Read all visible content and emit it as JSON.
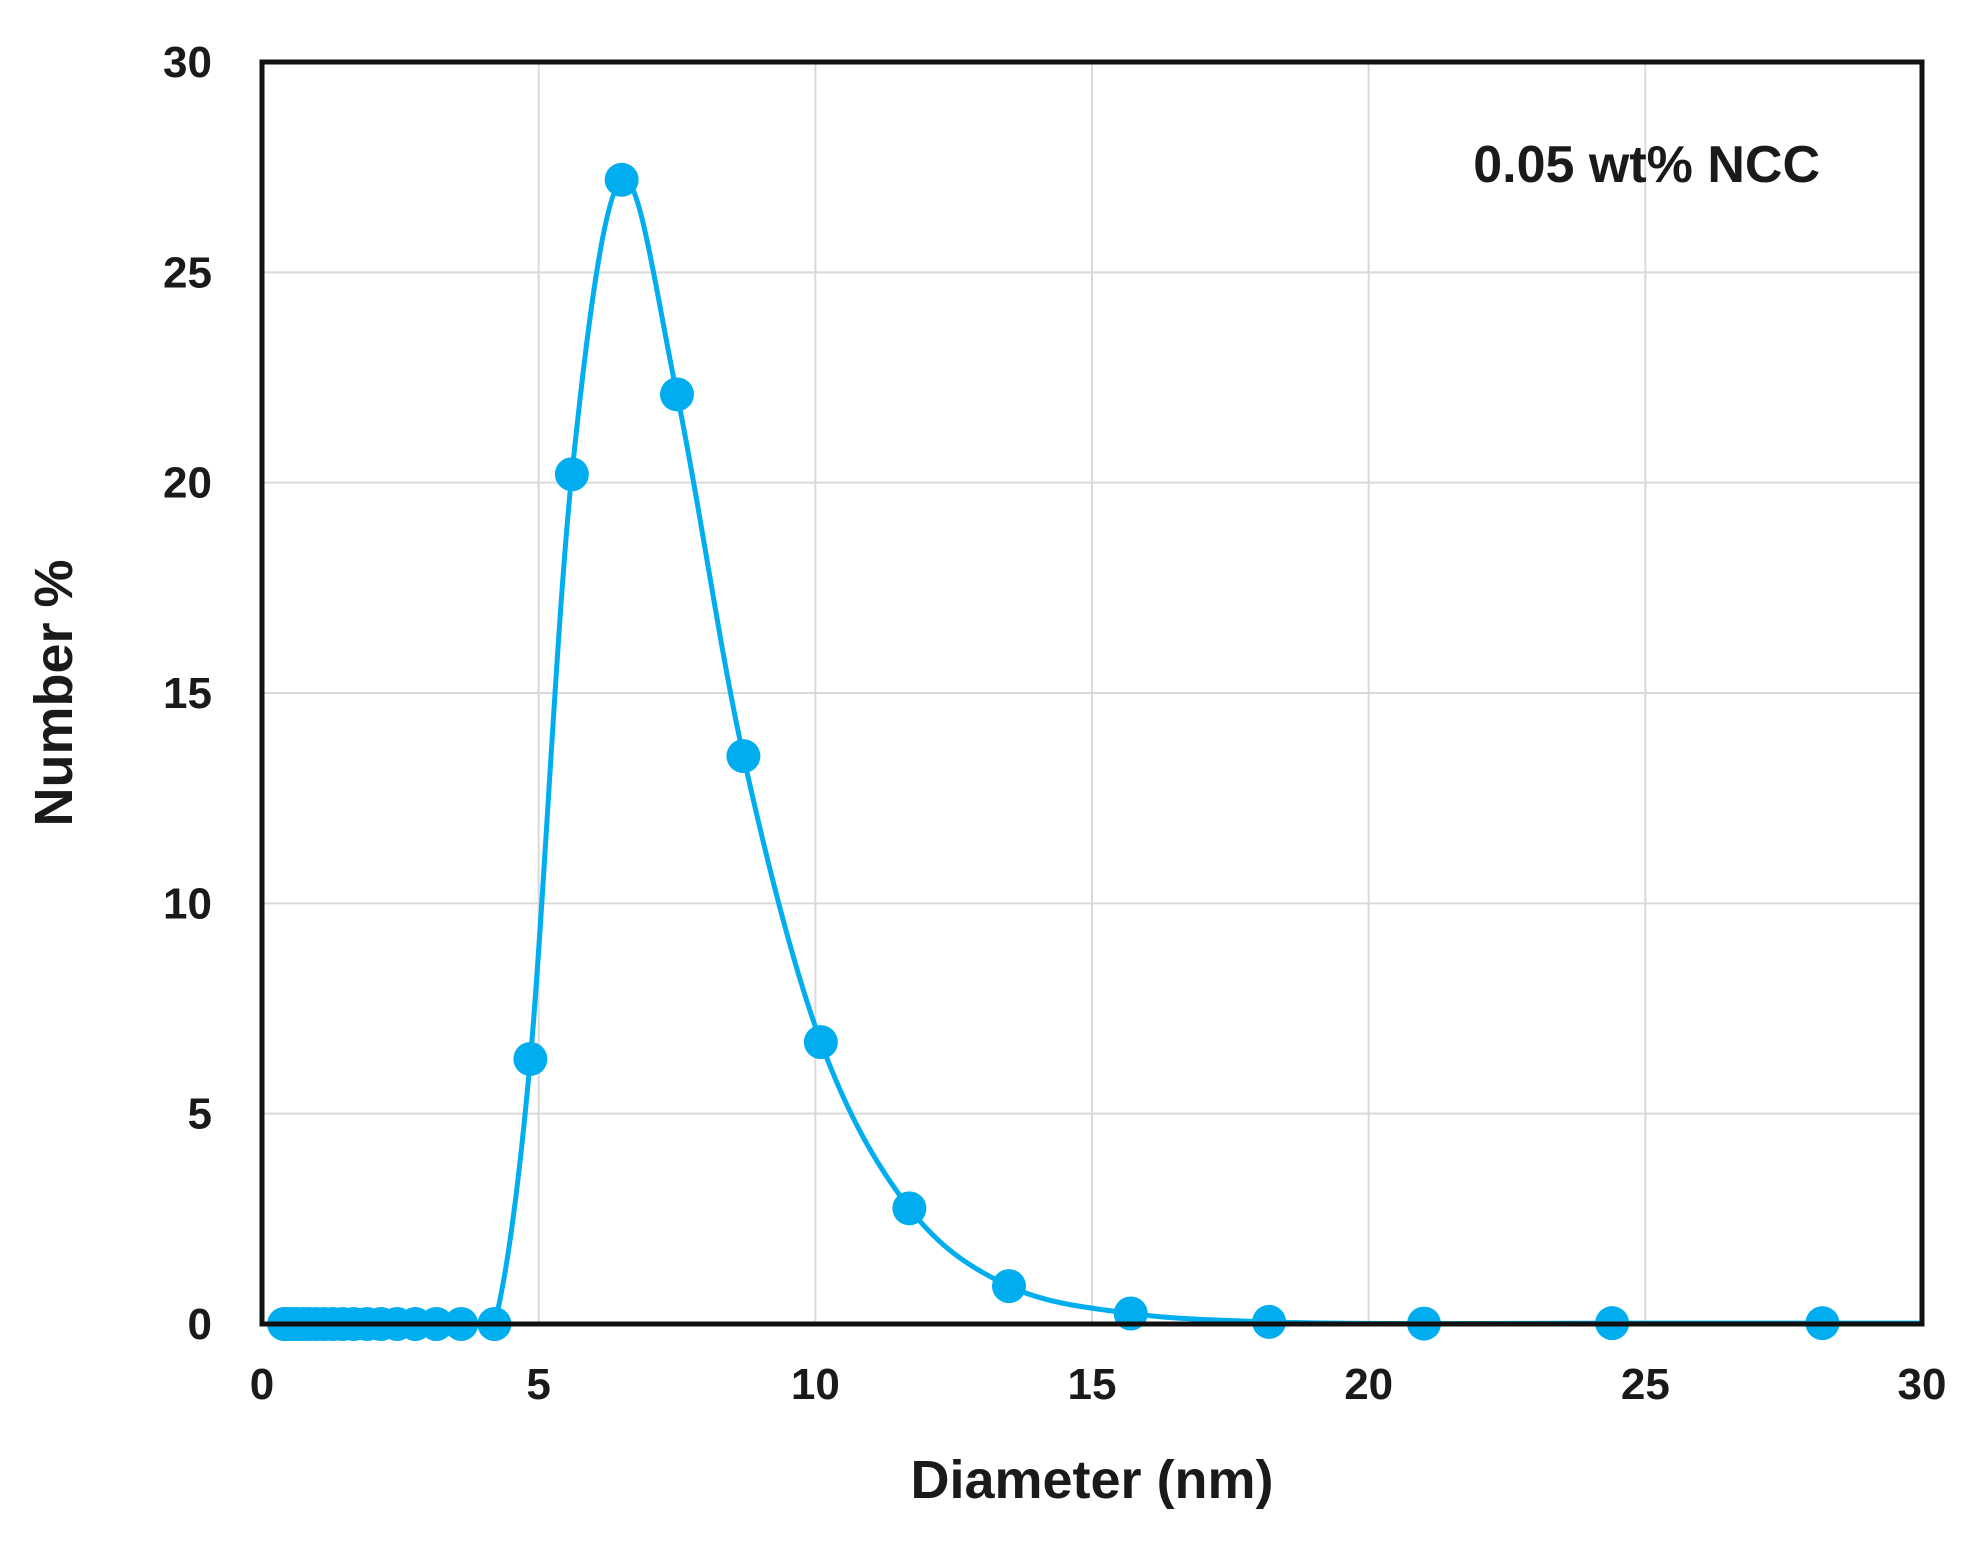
{
  "chart_data": {
    "type": "scatter",
    "title": "",
    "xlabel": "Diameter (nm)",
    "ylabel": "Number %",
    "xlim": [
      0,
      30
    ],
    "ylim": [
      0,
      30
    ],
    "x_ticks": [
      "0",
      "5",
      "10",
      "15",
      "20",
      "25",
      "30"
    ],
    "y_ticks": [
      "0",
      "5",
      "10",
      "15",
      "20",
      "25",
      "30"
    ],
    "grid": true,
    "annotation": "0.05 wt% NCC",
    "series": [
      {
        "color": "#00AEEF",
        "marker": "circle",
        "line": "smooth",
        "x": [
          0.4,
          0.47,
          0.55,
          0.64,
          0.74,
          0.85,
          0.98,
          1.12,
          1.28,
          1.46,
          1.66,
          1.9,
          2.15,
          2.44,
          2.77,
          3.15,
          3.6,
          4.2,
          4.85,
          5.6,
          6.5,
          7.5,
          8.7,
          10.1,
          11.7,
          13.5,
          15.7,
          18.2,
          21.0,
          24.4,
          28.2
        ],
        "y": [
          0,
          0,
          0,
          0,
          0,
          0,
          0,
          0,
          0,
          0,
          0,
          0,
          0,
          0,
          0,
          0,
          0,
          0,
          6.3,
          20.2,
          27.2,
          22.1,
          13.5,
          6.7,
          2.75,
          0.9,
          0.25,
          0.05,
          0.01,
          0.02,
          0.02
        ]
      }
    ]
  }
}
